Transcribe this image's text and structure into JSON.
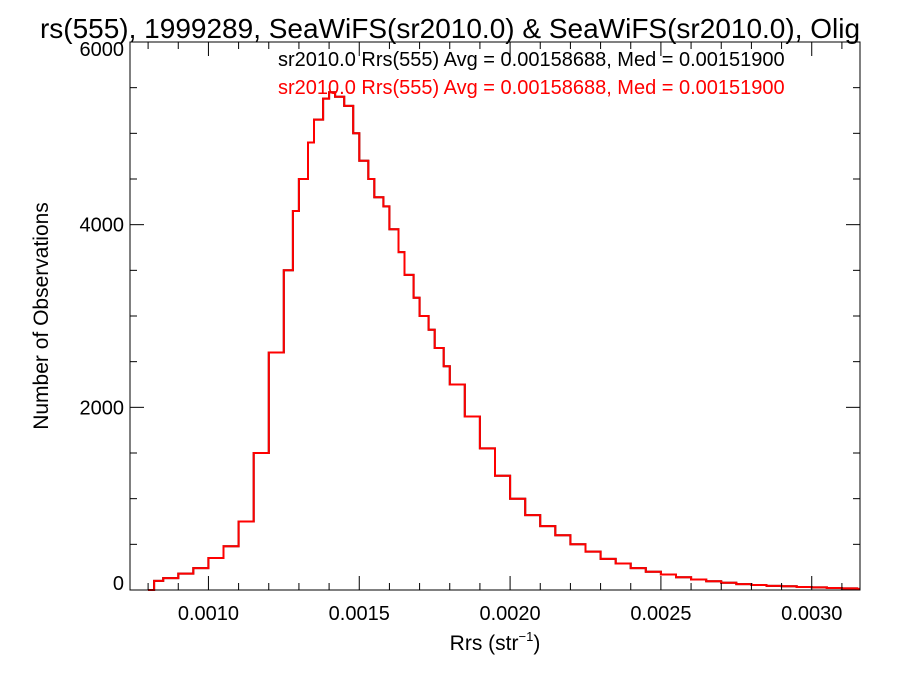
{
  "chart_data": {
    "type": "line",
    "title": "rs(555), 1999289, SeaWiFS(sr2010.0) & SeaWiFS(sr2010.0), Olig",
    "xlabel": "Rrs (str",
    "xlabel_sup": "−1",
    "xlabel_close": ")",
    "ylabel": "Number of Observations",
    "xlim": [
      0.00074,
      0.00316
    ],
    "ylim": [
      0,
      6000
    ],
    "x_ticks": [
      0.001,
      0.0015,
      0.002,
      0.0025,
      0.003
    ],
    "x_tick_labels": [
      "0.0010",
      "0.0015",
      "0.0020",
      "0.0025",
      "0.0030"
    ],
    "y_ticks": [
      0,
      2000,
      4000,
      6000
    ],
    "y_tick_labels": [
      "0",
      "2000",
      "4000",
      "6000"
    ],
    "grid": false,
    "legend_position": "top-right",
    "series": [
      {
        "name": "sr2010.0 Rrs(555) Avg = 0.00158688, Med = 0.00151900",
        "color": "#000000",
        "x": [
          0.0008,
          0.00082,
          0.00085,
          0.0009,
          0.00095,
          0.001,
          0.00105,
          0.0011,
          0.00115,
          0.0012,
          0.00125,
          0.00128,
          0.0013,
          0.00133,
          0.00135,
          0.00138,
          0.0014,
          0.00142,
          0.00145,
          0.00148,
          0.0015,
          0.00153,
          0.00155,
          0.00158,
          0.0016,
          0.00163,
          0.00165,
          0.00168,
          0.0017,
          0.00173,
          0.00175,
          0.00178,
          0.0018,
          0.00185,
          0.0019,
          0.00195,
          0.002,
          0.00205,
          0.0021,
          0.00215,
          0.0022,
          0.00225,
          0.0023,
          0.00235,
          0.0024,
          0.00245,
          0.0025,
          0.00255,
          0.0026,
          0.00265,
          0.0027,
          0.00275,
          0.0028,
          0.00285,
          0.0029,
          0.00295,
          0.003,
          0.00305,
          0.0031,
          0.00315
        ],
        "values": [
          0,
          100,
          130,
          180,
          240,
          350,
          480,
          750,
          1500,
          2600,
          3500,
          4150,
          4500,
          4900,
          5150,
          5380,
          5450,
          5400,
          5300,
          5000,
          4700,
          4500,
          4300,
          4200,
          3950,
          3700,
          3450,
          3200,
          3000,
          2850,
          2650,
          2450,
          2250,
          1900,
          1550,
          1250,
          1000,
          820,
          700,
          600,
          500,
          420,
          340,
          290,
          240,
          200,
          170,
          140,
          115,
          95,
          80,
          65,
          55,
          45,
          40,
          33,
          28,
          22,
          18,
          12
        ]
      },
      {
        "name": "sr2010.0 Rrs(555) Avg = 0.00158688, Med = 0.00151900",
        "color": "#ff0000",
        "x": [
          0.0008,
          0.00082,
          0.00085,
          0.0009,
          0.00095,
          0.001,
          0.00105,
          0.0011,
          0.00115,
          0.0012,
          0.00125,
          0.00128,
          0.0013,
          0.00133,
          0.00135,
          0.00138,
          0.0014,
          0.00142,
          0.00145,
          0.00148,
          0.0015,
          0.00153,
          0.00155,
          0.00158,
          0.0016,
          0.00163,
          0.00165,
          0.00168,
          0.0017,
          0.00173,
          0.00175,
          0.00178,
          0.0018,
          0.00185,
          0.0019,
          0.00195,
          0.002,
          0.00205,
          0.0021,
          0.00215,
          0.0022,
          0.00225,
          0.0023,
          0.00235,
          0.0024,
          0.00245,
          0.0025,
          0.00255,
          0.0026,
          0.00265,
          0.0027,
          0.00275,
          0.0028,
          0.00285,
          0.0029,
          0.00295,
          0.003,
          0.00305,
          0.0031,
          0.00315
        ],
        "values": [
          0,
          100,
          130,
          180,
          240,
          350,
          480,
          750,
          1500,
          2600,
          3500,
          4150,
          4500,
          4900,
          5150,
          5380,
          5450,
          5400,
          5300,
          5000,
          4700,
          4500,
          4300,
          4200,
          3950,
          3700,
          3450,
          3200,
          3000,
          2850,
          2650,
          2450,
          2250,
          1900,
          1550,
          1250,
          1000,
          820,
          700,
          600,
          500,
          420,
          340,
          290,
          240,
          200,
          170,
          140,
          115,
          95,
          80,
          65,
          55,
          45,
          40,
          33,
          28,
          22,
          18,
          12
        ]
      }
    ]
  }
}
